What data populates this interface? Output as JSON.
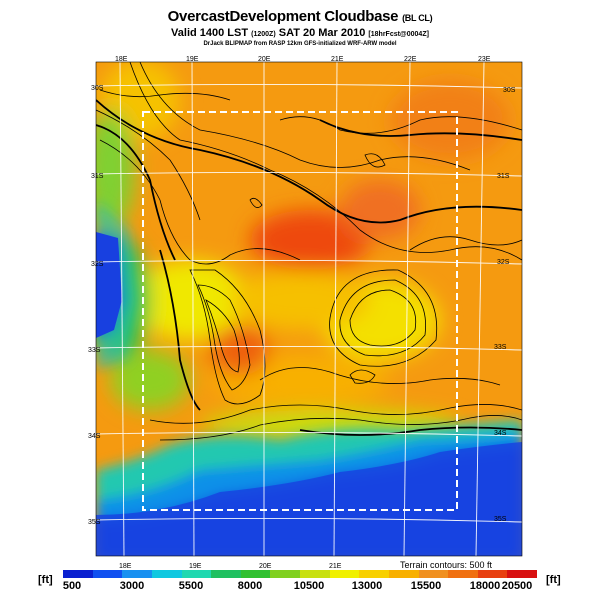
{
  "header": {
    "title_main": "OvercastDevelopment Cloudbase",
    "title_suffix": "(BL CL)",
    "valid_prefix": "Valid 1400 LST",
    "valid_zulu": "(1200Z)",
    "valid_date": "SAT 20 Mar 2010",
    "valid_suffix": "[18hrFcst@0004Z]",
    "credit": "DrJack BLIPMAP from RASP 12km GFS-initialized WRF-ARW model"
  },
  "map": {
    "lon_labels": [
      "18E",
      "19E",
      "20E",
      "21E",
      "22E",
      "23E"
    ],
    "lat_labels_left": [
      "30S",
      "31S",
      "32S",
      "33S",
      "34S",
      "35S"
    ],
    "lat_labels_right": [
      "30S",
      "31S",
      "32S",
      "33S",
      "34S",
      "35S"
    ],
    "terrain_note": "Terrain contours: 500 ft",
    "ocean_color": "#1640e0",
    "land_color_low": "#20b020",
    "land_color_high": "#ee5010",
    "subdomain_box_color": "#ffffff"
  },
  "colorbar": {
    "unit_left": "[ft]",
    "unit_right": "[ft]",
    "tick_labels": [
      "500",
      "3000",
      "5500",
      "8000",
      "10500",
      "13000",
      "15500",
      "18000",
      "20500"
    ],
    "colors": [
      "#0a20d0",
      "#1050f0",
      "#1890f0",
      "#10c8e0",
      "#20d8b0",
      "#20c060",
      "#30c030",
      "#80d020",
      "#c8e010",
      "#f0f000",
      "#f8d000",
      "#f8b000",
      "#f09020",
      "#f07010",
      "#e84010",
      "#d81010"
    ]
  }
}
